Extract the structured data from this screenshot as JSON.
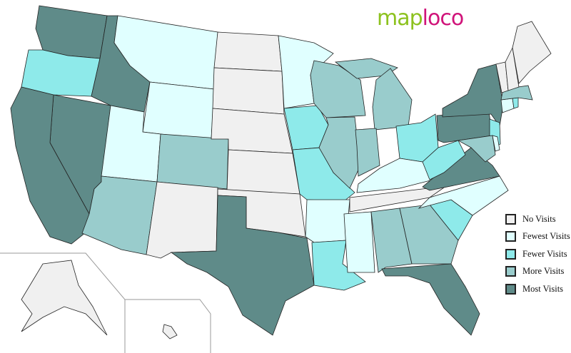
{
  "logo": {
    "part1": "map",
    "part2": "loco"
  },
  "legend": [
    {
      "key": "none",
      "label": "No Visits",
      "color": "#f0f0f0"
    },
    {
      "key": "fewest",
      "label": "Fewest Visits",
      "color": "#e0ffff"
    },
    {
      "key": "fewer",
      "label": "Fewer Visits",
      "color": "#8eeaea"
    },
    {
      "key": "more",
      "label": "More Visits",
      "color": "#99cccc"
    },
    {
      "key": "most",
      "label": "Most Visits",
      "color": "#5f8b89"
    }
  ],
  "states": {
    "WA": "most",
    "OR": "fewer",
    "ID": "most",
    "MT": "fewest",
    "WY": "fewest",
    "NV": "most",
    "CA": "most",
    "UT": "fewest",
    "CO": "more",
    "AZ": "more",
    "NM": "none",
    "ND": "none",
    "SD": "none",
    "NE": "none",
    "KS": "none",
    "OK": "none",
    "TX": "most",
    "MN": "fewest",
    "IA": "fewer",
    "MO": "fewer",
    "AR": "fewest",
    "LA": "fewer",
    "WI": "more",
    "IL": "more",
    "MI": "more",
    "IN": "more",
    "OH": "fewer",
    "KY": "fewest",
    "TN": "none",
    "MS": "fewest",
    "AL": "more",
    "GA": "more",
    "FL": "most",
    "SC": "fewer",
    "NC": "fewest",
    "VA": "most",
    "WV": "fewer",
    "PA": "most",
    "NY": "most",
    "NJ": "fewer",
    "MD": "more",
    "DE": "fewest",
    "CT": "fewest",
    "RI": "fewer",
    "MA": "more",
    "VT": "none",
    "NH": "none",
    "ME": "none",
    "AK": "none",
    "HI": "none"
  }
}
